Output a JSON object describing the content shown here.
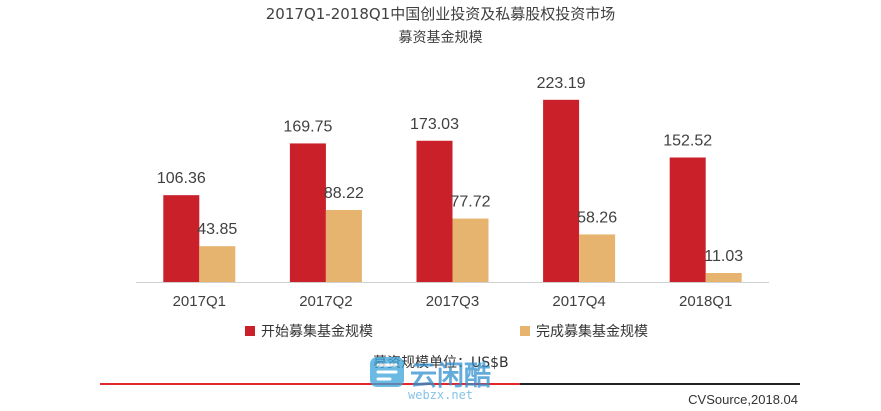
{
  "chart_data": {
    "type": "bar",
    "title": "2017Q1-2018Q1中国创业投资及私募股权投资市场",
    "subtitle": "募资基金规模",
    "categories": [
      "2017Q1",
      "2017Q2",
      "2017Q3",
      "2017Q4",
      "2018Q1"
    ],
    "series": [
      {
        "name": "开始募集基金规模",
        "values": [
          106.36,
          169.75,
          173.03,
          223.19,
          152.52
        ],
        "color": "#c9202a"
      },
      {
        "name": "完成募集基金规模",
        "values": [
          43.85,
          88.22,
          77.72,
          58.26,
          11.03
        ],
        "color": "#e6b46e"
      }
    ],
    "ylim": [
      0,
      245
    ],
    "grid": false,
    "legend_position": "bottom"
  },
  "unit_label": "募资规模单位：US$B",
  "source": "CVSource,2018.04",
  "watermark": {
    "text": "云闲酷",
    "subtext": "webzx.net"
  },
  "footer_line_colors": [
    "#e3262a",
    "#222222"
  ]
}
